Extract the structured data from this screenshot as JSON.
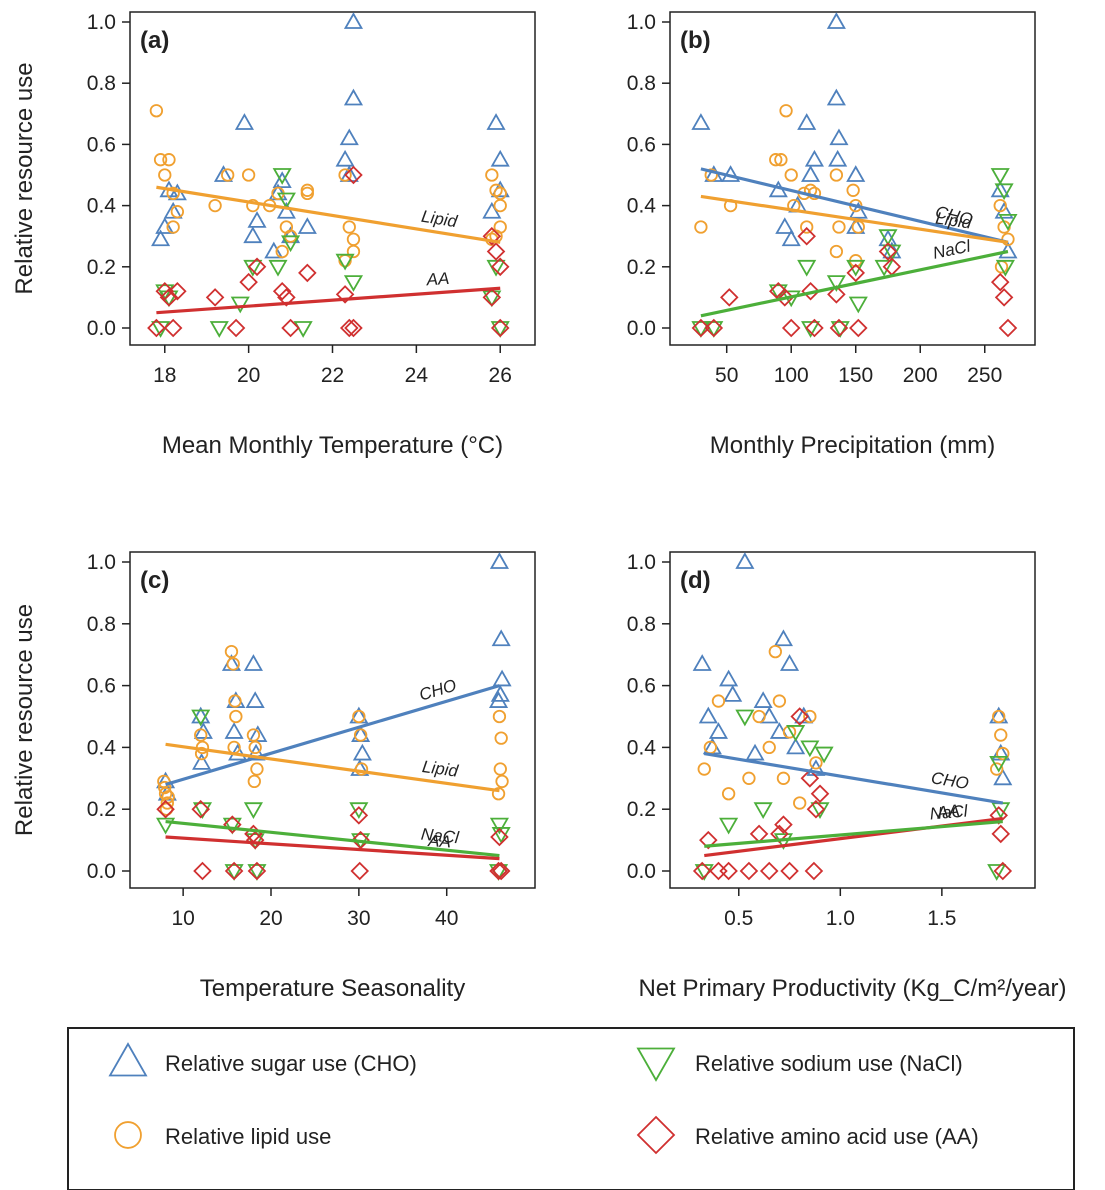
{
  "colors": {
    "CHO": "#4f81bd",
    "Lipid": "#f0a030",
    "NaCl": "#4caf3a",
    "AA": "#d03030"
  },
  "legend": [
    {
      "key": "CHO",
      "marker": "triangle-up",
      "label": "Relative sugar use (CHO)"
    },
    {
      "key": "NaCl",
      "marker": "triangle-down",
      "label": "Relative sodium use (NaCl)"
    },
    {
      "key": "Lipid",
      "marker": "circle",
      "label": "Relative lipid use"
    },
    {
      "key": "AA",
      "marker": "diamond",
      "label": "Relative amino acid use (AA)"
    }
  ],
  "chart_data": [
    {
      "type": "scatter",
      "panel": "(a)",
      "xlabel": "Mean Monthly Temperature (°C)",
      "ylabel": "Relative resource use",
      "xlim": [
        17.6,
        26.4
      ],
      "ylim": [
        0,
        1
      ],
      "xticks": [
        18,
        20,
        22,
        24,
        26
      ],
      "xtick_labels": [
        "18",
        "20",
        "22",
        "24",
        "26"
      ],
      "yticks": [
        0,
        0.2,
        0.4,
        0.6,
        0.8,
        1.0
      ],
      "ytick_labels": [
        "0.0",
        "0.2",
        "0.4",
        "0.6",
        "0.8",
        "1.0"
      ],
      "series": [
        {
          "key": "CHO",
          "x": [
            17.9,
            18.0,
            18.2,
            18.3,
            18.1,
            19.4,
            19.9,
            20.1,
            20.2,
            20.7,
            20.8,
            20.9,
            21.0,
            20.6,
            21.4,
            22.3,
            22.4,
            22.5,
            22.5,
            22.4,
            25.9,
            26.0,
            26.0,
            25.8
          ],
          "y": [
            0.29,
            0.33,
            0.38,
            0.44,
            0.45,
            0.5,
            0.67,
            0.3,
            0.35,
            0.44,
            0.48,
            0.38,
            0.3,
            0.25,
            0.33,
            0.55,
            0.62,
            0.75,
            1.0,
            0.5,
            0.67,
            0.55,
            0.45,
            0.38
          ]
        },
        {
          "key": "Lipid",
          "x": [
            17.8,
            17.9,
            18.0,
            18.1,
            18.2,
            18.3,
            18.2,
            19.2,
            19.5,
            20.0,
            20.1,
            20.5,
            20.7,
            20.9,
            21.0,
            20.8,
            21.4,
            21.4,
            22.3,
            22.4,
            22.5,
            22.3,
            22.5,
            25.8,
            25.9,
            26.0,
            26.0,
            25.9,
            25.8,
            26.0
          ],
          "y": [
            0.71,
            0.55,
            0.5,
            0.55,
            0.44,
            0.38,
            0.33,
            0.4,
            0.5,
            0.5,
            0.4,
            0.4,
            0.44,
            0.33,
            0.3,
            0.25,
            0.45,
            0.44,
            0.5,
            0.33,
            0.29,
            0.22,
            0.25,
            0.5,
            0.45,
            0.4,
            0.33,
            0.3,
            0.29,
            0.44
          ]
        },
        {
          "key": "NaCl",
          "x": [
            17.9,
            18.0,
            18.1,
            19.3,
            19.8,
            20.1,
            20.8,
            20.9,
            21.0,
            20.7,
            21.3,
            22.3,
            22.5,
            25.9,
            26.0,
            25.8
          ],
          "y": [
            0.0,
            0.12,
            0.1,
            0.0,
            0.08,
            0.2,
            0.5,
            0.42,
            0.28,
            0.2,
            0.0,
            0.22,
            0.15,
            0.2,
            0.0,
            0.1
          ]
        },
        {
          "key": "AA",
          "x": [
            17.8,
            18.0,
            18.1,
            18.3,
            18.2,
            19.2,
            19.7,
            20.0,
            20.2,
            20.8,
            20.9,
            21.0,
            21.4,
            22.3,
            22.4,
            22.5,
            22.5,
            25.8,
            25.9,
            26.0,
            25.8,
            26.0
          ],
          "y": [
            0.0,
            0.12,
            0.1,
            0.12,
            0.0,
            0.1,
            0.0,
            0.15,
            0.2,
            0.12,
            0.1,
            0.0,
            0.18,
            0.11,
            0.0,
            0.5,
            0.0,
            0.3,
            0.25,
            0.2,
            0.1,
            0.0
          ]
        }
      ],
      "fits": [
        {
          "key": "Lipid",
          "label": "Lipid",
          "x": [
            17.8,
            26.0
          ],
          "y": [
            0.46,
            0.28
          ]
        },
        {
          "key": "AA",
          "label": "AA",
          "x": [
            17.8,
            26.0
          ],
          "y": [
            0.05,
            0.13
          ]
        }
      ]
    },
    {
      "type": "scatter",
      "panel": "(b)",
      "xlabel": "Monthly Precipitation (mm)",
      "ylabel": "",
      "xlim": [
        20,
        275
      ],
      "ylim": [
        0,
        1
      ],
      "xticks": [
        50,
        100,
        150,
        200,
        250
      ],
      "xtick_labels": [
        "50",
        "100",
        "150",
        "200",
        "250"
      ],
      "yticks": [
        0,
        0.2,
        0.4,
        0.6,
        0.8,
        1.0
      ],
      "ytick_labels": [
        "0.0",
        "0.2",
        "0.4",
        "0.6",
        "0.8",
        "1.0"
      ],
      "series": [
        {
          "key": "CHO",
          "x": [
            30,
            40,
            53,
            90,
            95,
            100,
            105,
            112,
            115,
            118,
            135,
            135,
            137,
            136,
            150,
            152,
            150,
            175,
            178,
            262,
            265,
            268
          ],
          "y": [
            0.67,
            0.5,
            0.5,
            0.45,
            0.33,
            0.29,
            0.4,
            0.67,
            0.5,
            0.55,
            1.0,
            0.75,
            0.62,
            0.55,
            0.5,
            0.38,
            0.33,
            0.29,
            0.25,
            0.45,
            0.38,
            0.25
          ]
        },
        {
          "key": "Lipid",
          "x": [
            30,
            38,
            53,
            88,
            92,
            96,
            100,
            102,
            110,
            112,
            115,
            118,
            135,
            137,
            135,
            148,
            150,
            152,
            150,
            262,
            265,
            268,
            263
          ],
          "y": [
            0.33,
            0.5,
            0.4,
            0.55,
            0.55,
            0.71,
            0.5,
            0.4,
            0.44,
            0.33,
            0.45,
            0.44,
            0.5,
            0.33,
            0.25,
            0.45,
            0.4,
            0.33,
            0.22,
            0.4,
            0.33,
            0.29,
            0.2
          ]
        },
        {
          "key": "NaCl",
          "x": [
            30,
            40,
            90,
            100,
            112,
            115,
            135,
            138,
            150,
            152,
            175,
            178,
            172,
            262,
            265,
            268,
            266
          ],
          "y": [
            0.0,
            0.0,
            0.12,
            0.1,
            0.2,
            0.0,
            0.15,
            0.0,
            0.2,
            0.08,
            0.3,
            0.25,
            0.2,
            0.5,
            0.45,
            0.35,
            0.2
          ]
        },
        {
          "key": "AA",
          "x": [
            30,
            40,
            52,
            90,
            95,
            100,
            112,
            115,
            118,
            135,
            137,
            150,
            152,
            175,
            178,
            262,
            265,
            268
          ],
          "y": [
            0.0,
            0.0,
            0.1,
            0.12,
            0.1,
            0.0,
            0.3,
            0.12,
            0.0,
            0.11,
            0.0,
            0.18,
            0.0,
            0.25,
            0.2,
            0.15,
            0.1,
            0.0
          ]
        }
      ],
      "fits": [
        {
          "key": "CHO",
          "label": "CHO",
          "x": [
            30,
            268
          ],
          "y": [
            0.52,
            0.28
          ]
        },
        {
          "key": "Lipid",
          "label": "Lipid",
          "x": [
            30,
            268
          ],
          "y": [
            0.43,
            0.28
          ]
        },
        {
          "key": "NaCl",
          "label": "NaCl",
          "x": [
            30,
            268
          ],
          "y": [
            0.04,
            0.25
          ]
        }
      ]
    },
    {
      "type": "scatter",
      "panel": "(c)",
      "xlabel": "Temperature Seasonality",
      "ylabel": "Relative resource use",
      "xlim": [
        6,
        48
      ],
      "ylim": [
        0,
        1
      ],
      "xticks": [
        10,
        20,
        30,
        40
      ],
      "xtick_labels": [
        "10",
        "20",
        "30",
        "40"
      ],
      "yticks": [
        0,
        0.2,
        0.4,
        0.6,
        0.8,
        1.0
      ],
      "ytick_labels": [
        "0.0",
        "0.2",
        "0.4",
        "0.6",
        "0.8",
        "1.0"
      ],
      "series": [
        {
          "key": "CHO",
          "x": [
            8,
            8.2,
            12,
            12.3,
            12.1,
            15.5,
            16,
            15.8,
            16.2,
            18,
            18.2,
            18.5,
            18.3,
            30,
            30.2,
            30.4,
            30.1,
            46,
            46.2,
            46.3,
            45.9,
            46.1
          ],
          "y": [
            0.29,
            0.25,
            0.5,
            0.45,
            0.35,
            0.67,
            0.55,
            0.45,
            0.38,
            0.67,
            0.55,
            0.44,
            0.38,
            0.5,
            0.44,
            0.38,
            0.33,
            1.0,
            0.75,
            0.62,
            0.55,
            0.57
          ]
        },
        {
          "key": "Lipid",
          "x": [
            7.8,
            8,
            8.2,
            8.1,
            7.9,
            8.3,
            12,
            12.2,
            12.1,
            15.5,
            15.7,
            15.9,
            16,
            15.8,
            18,
            18.2,
            18.4,
            18.1,
            30,
            30.2,
            30.3,
            46,
            46.2,
            46.1,
            46.3,
            45.9
          ],
          "y": [
            0.29,
            0.25,
            0.22,
            0.2,
            0.27,
            0.24,
            0.44,
            0.4,
            0.38,
            0.71,
            0.67,
            0.55,
            0.5,
            0.4,
            0.44,
            0.4,
            0.33,
            0.29,
            0.5,
            0.44,
            0.33,
            0.5,
            0.43,
            0.33,
            0.29,
            0.25
          ]
        },
        {
          "key": "NaCl",
          "x": [
            8,
            12,
            12.2,
            15.6,
            15.8,
            18,
            18.2,
            18.4,
            30,
            30.2,
            46,
            46.2,
            45.9
          ],
          "y": [
            0.15,
            0.5,
            0.2,
            0.15,
            0.0,
            0.2,
            0.1,
            0.0,
            0.2,
            0.1,
            0.15,
            0.12,
            0.0
          ]
        },
        {
          "key": "AA",
          "x": [
            8,
            12,
            12.2,
            15.6,
            15.8,
            18,
            18.2,
            18.4,
            30,
            30.2,
            30.1,
            46,
            46.2,
            45.9
          ],
          "y": [
            0.2,
            0.2,
            0.0,
            0.15,
            0.0,
            0.12,
            0.1,
            0.0,
            0.18,
            0.1,
            0.0,
            0.11,
            0.0,
            0.0
          ]
        }
      ],
      "fits": [
        {
          "key": "CHO",
          "label": "CHO",
          "x": [
            8,
            46
          ],
          "y": [
            0.28,
            0.6
          ]
        },
        {
          "key": "Lipid",
          "label": "Lipid",
          "x": [
            8,
            46
          ],
          "y": [
            0.41,
            0.26
          ]
        },
        {
          "key": "NaCl",
          "label": "NaCl",
          "x": [
            8,
            46
          ],
          "y": [
            0.16,
            0.05
          ]
        },
        {
          "key": "AA",
          "label": "AA",
          "x": [
            8,
            46
          ],
          "y": [
            0.11,
            0.04
          ]
        }
      ]
    },
    {
      "type": "scatter",
      "panel": "(d)",
      "xlabel": "Net Primary Productivity (Kg_C/m²/year)",
      "ylabel": "",
      "xlim": [
        0.25,
        1.87
      ],
      "ylim": [
        0,
        1
      ],
      "xticks": [
        0.5,
        1.0,
        1.5
      ],
      "xtick_labels": [
        "0.5",
        "1.0",
        "1.5"
      ],
      "yticks": [
        0,
        0.2,
        0.4,
        0.6,
        0.8,
        1.0
      ],
      "ytick_labels": [
        "0.0",
        "0.2",
        "0.4",
        "0.6",
        "0.8",
        "1.0"
      ],
      "series": [
        {
          "key": "CHO",
          "x": [
            0.32,
            0.35,
            0.45,
            0.47,
            0.53,
            0.58,
            0.62,
            0.65,
            0.7,
            0.72,
            0.75,
            0.78,
            0.82,
            0.88,
            1.78,
            1.79,
            1.8,
            0.37,
            0.4
          ],
          "y": [
            0.67,
            0.5,
            0.62,
            0.57,
            1.0,
            0.38,
            0.55,
            0.5,
            0.45,
            0.75,
            0.67,
            0.4,
            0.5,
            0.33,
            0.5,
            0.38,
            0.3,
            0.4,
            0.45
          ]
        },
        {
          "key": "Lipid",
          "x": [
            0.33,
            0.36,
            0.4,
            0.45,
            0.55,
            0.6,
            0.65,
            0.68,
            0.7,
            0.72,
            0.75,
            0.8,
            0.85,
            0.88,
            1.78,
            1.79,
            1.8,
            1.77
          ],
          "y": [
            0.33,
            0.4,
            0.55,
            0.25,
            0.3,
            0.5,
            0.4,
            0.71,
            0.55,
            0.3,
            0.45,
            0.22,
            0.5,
            0.35,
            0.5,
            0.44,
            0.38,
            0.33
          ]
        },
        {
          "key": "NaCl",
          "x": [
            0.33,
            0.45,
            0.53,
            0.62,
            0.72,
            0.78,
            0.85,
            0.9,
            0.92,
            1.78,
            1.79,
            1.77
          ],
          "y": [
            0.0,
            0.15,
            0.5,
            0.2,
            0.1,
            0.45,
            0.4,
            0.2,
            0.38,
            0.35,
            0.2,
            0.0
          ]
        },
        {
          "key": "AA",
          "x": [
            0.32,
            0.35,
            0.4,
            0.45,
            0.6,
            0.65,
            0.7,
            0.75,
            0.8,
            0.85,
            0.88,
            0.9,
            0.87,
            1.78,
            1.79,
            1.8,
            0.55,
            0.72
          ],
          "y": [
            0.0,
            0.1,
            0.0,
            0.0,
            0.12,
            0.0,
            0.12,
            0.0,
            0.5,
            0.3,
            0.2,
            0.25,
            0.0,
            0.18,
            0.12,
            0.0,
            0.0,
            0.15
          ]
        }
      ],
      "fits": [
        {
          "key": "CHO",
          "label": "CHO",
          "x": [
            0.33,
            1.8
          ],
          "y": [
            0.38,
            0.22
          ]
        },
        {
          "key": "AA",
          "label": "AA",
          "x": [
            0.33,
            1.8
          ],
          "y": [
            0.05,
            0.17
          ]
        },
        {
          "key": "NaCl",
          "label": "NaCl",
          "x": [
            0.33,
            1.8
          ],
          "y": [
            0.08,
            0.16
          ]
        }
      ]
    }
  ]
}
